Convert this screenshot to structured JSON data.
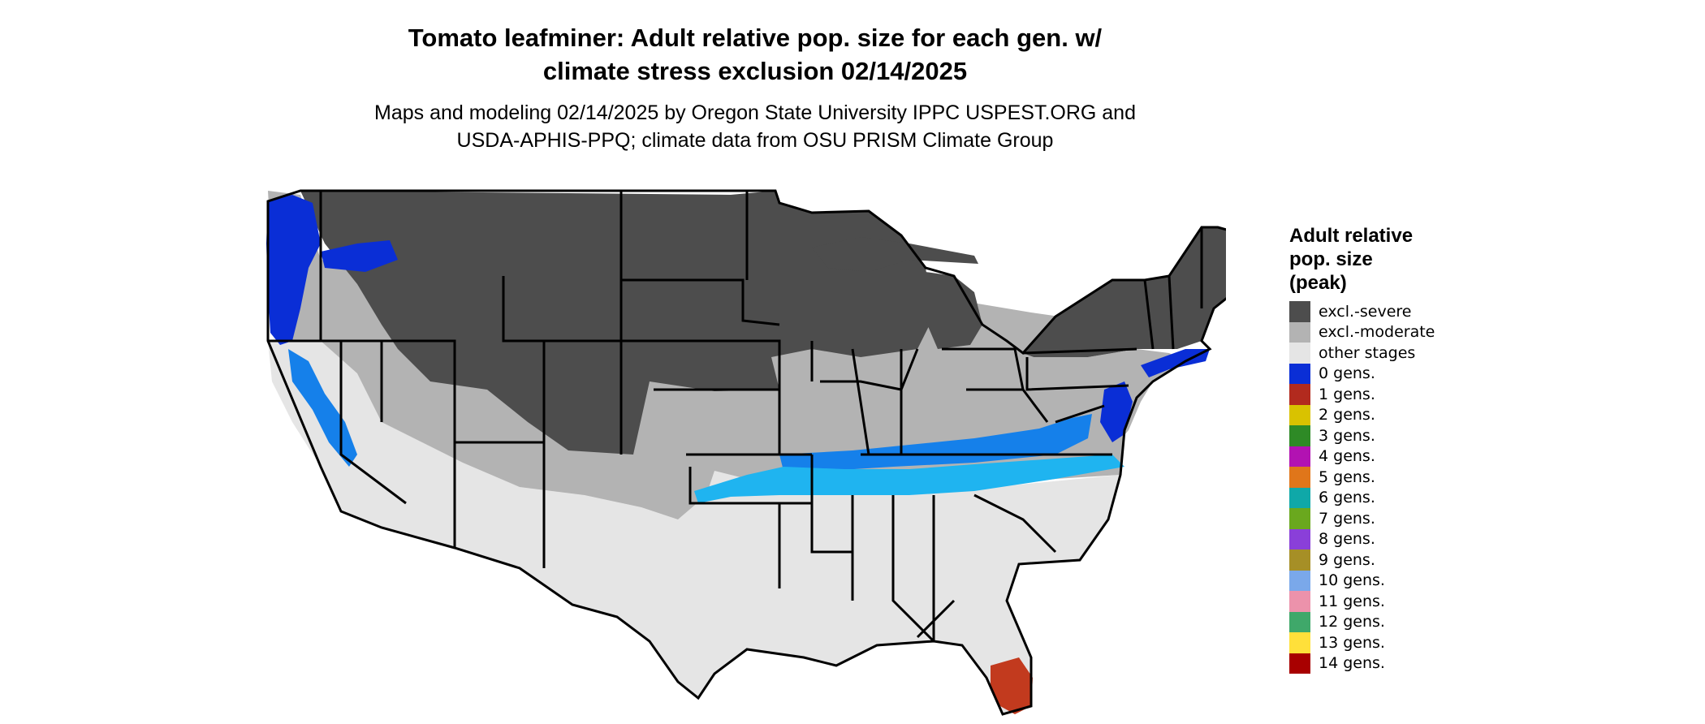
{
  "title": {
    "line1": "Tomato leafminer: Adult relative pop. size for each gen. w/",
    "line2": "climate stress exclusion 02/14/2025"
  },
  "subtitle": {
    "line1": "Maps and modeling 02/14/2025 by Oregon State University IPPC USPEST.ORG and",
    "line2": "USDA-APHIS-PPQ; climate data from OSU PRISM Climate Group"
  },
  "legend": {
    "title_lines": [
      "Adult relative",
      "pop. size",
      "(peak)"
    ],
    "items": [
      {
        "label": "excl.-severe",
        "color": "#4d4d4d"
      },
      {
        "label": "excl.-moderate",
        "color": "#b3b3b3"
      },
      {
        "label": "other stages",
        "color": "#e5e5e5"
      },
      {
        "label": "0 gens.",
        "color": "#0a2ed6"
      },
      {
        "label": "1 gens.",
        "color": "#b22a1e"
      },
      {
        "label": "2 gens.",
        "color": "#d9c200"
      },
      {
        "label": "3 gens.",
        "color": "#2e8a26"
      },
      {
        "label": "4 gens.",
        "color": "#b212b2"
      },
      {
        "label": "5 gens.",
        "color": "#e0761a"
      },
      {
        "label": "6 gens.",
        "color": "#0fa8a8"
      },
      {
        "label": "7 gens.",
        "color": "#6aa81e"
      },
      {
        "label": "8 gens.",
        "color": "#8a3fd9"
      },
      {
        "label": "9 gens.",
        "color": "#a68f26"
      },
      {
        "label": "10 gens.",
        "color": "#7aa8ea"
      },
      {
        "label": "11 gens.",
        "color": "#ec92ab"
      },
      {
        "label": "12 gens.",
        "color": "#3fa86a"
      },
      {
        "label": "13 gens.",
        "color": "#ffe03a"
      },
      {
        "label": "14 gens.",
        "color": "#a80000"
      }
    ]
  },
  "map_colors": {
    "severe": "#4d4d4d",
    "moderate": "#b3b3b3",
    "other": "#e5e5e5",
    "blue_dark": "#0a2ed6",
    "blue_mid": "#1580ea",
    "blue_light": "#1fb4f0",
    "red": "#c23a1e",
    "border": "#000000"
  }
}
